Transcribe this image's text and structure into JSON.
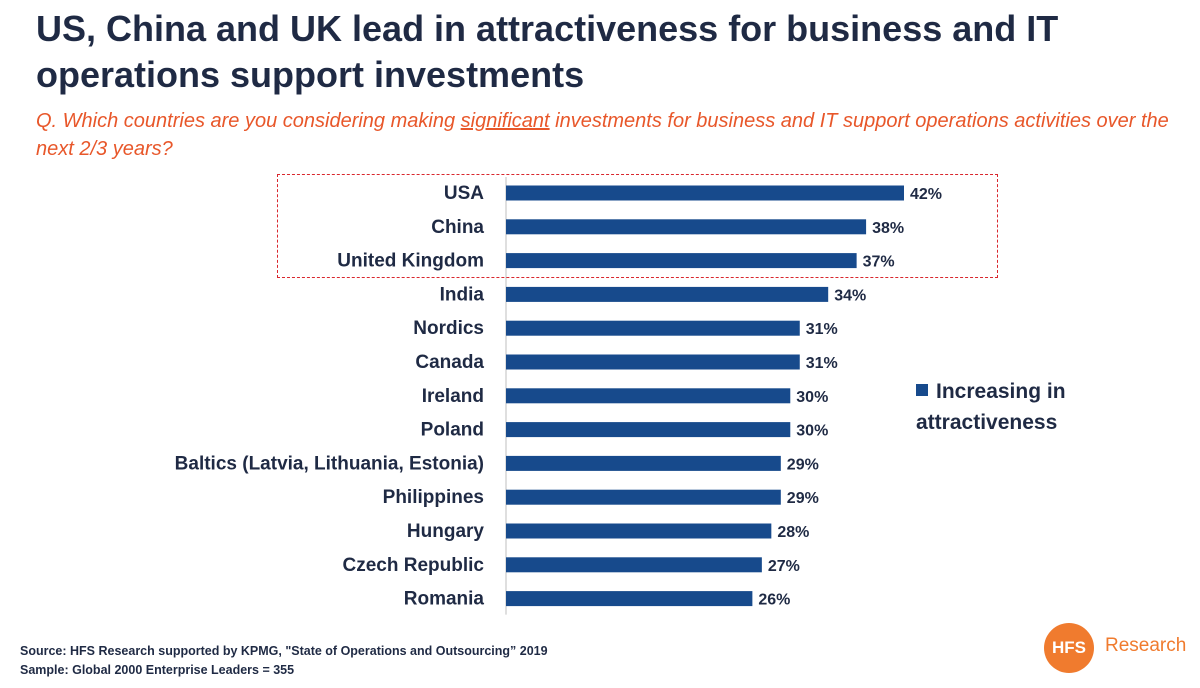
{
  "title": "US, China and UK lead in attractiveness for business and IT operations support investments",
  "question": {
    "prefix": "Q. Which countries are you considering making ",
    "emphasis": "significant",
    "suffix": " investments for business and IT support operations activities over the next 2/3 years?"
  },
  "legend": {
    "label": "Increasing in attractiveness"
  },
  "footer": {
    "source": "Source: HFS Research supported by KPMG, \"State of Operations and Outsourcing” 2019",
    "sample": "Sample: Global 2000 Enterprise Leaders = 355"
  },
  "logo": {
    "mark": "HFS",
    "text": "Research",
    "color": "#f07b2e"
  },
  "colors": {
    "bar": "#174a8c",
    "highlight": "#d9272d",
    "question": "#e8572a"
  },
  "chart_data": {
    "type": "bar",
    "orientation": "horizontal",
    "categories": [
      "USA",
      "China",
      "United Kingdom",
      "India",
      "Nordics",
      "Canada",
      "Ireland",
      "Poland",
      "Baltics (Latvia, Lithuania, Estonia)",
      "Philippines",
      "Hungary",
      "Czech Republic",
      "Romania"
    ],
    "series": [
      {
        "name": "Increasing in attractiveness",
        "values": [
          42,
          38,
          37,
          34,
          31,
          31,
          30,
          30,
          29,
          29,
          28,
          27,
          26
        ]
      }
    ],
    "value_labels": [
      "42%",
      "38%",
      "37%",
      "34%",
      "31%",
      "31%",
      "30%",
      "30%",
      "29%",
      "29%",
      "28%",
      "27%",
      "26%"
    ],
    "highlighted_categories": [
      "USA",
      "China",
      "United Kingdom"
    ],
    "xlim": [
      0,
      42
    ],
    "grid": false,
    "legend_position": "right"
  }
}
